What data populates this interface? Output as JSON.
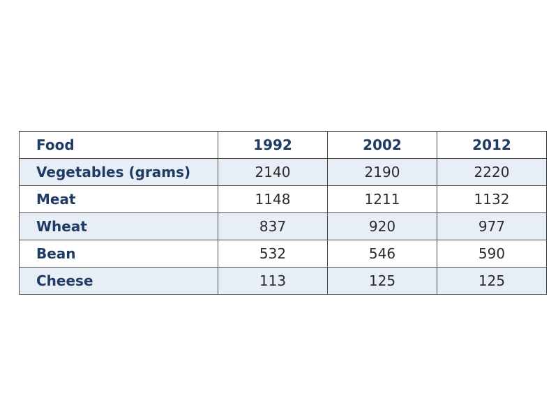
{
  "chart_data": {
    "type": "table",
    "columns": [
      "Food",
      "1992",
      "2002",
      "2012"
    ],
    "rows": [
      {
        "label": "Vegetables (grams)",
        "values": [
          "2140",
          "2190",
          "2220"
        ]
      },
      {
        "label": "Meat",
        "values": [
          "1148",
          "1211",
          "1132"
        ]
      },
      {
        "label": "Wheat",
        "values": [
          "837",
          "920",
          "977"
        ]
      },
      {
        "label": "Bean",
        "values": [
          "532",
          "546",
          "590"
        ]
      },
      {
        "label": "Cheese",
        "values": [
          "113",
          "125",
          "125"
        ]
      }
    ],
    "colors": {
      "header_text": "#1f3b63",
      "row_shade": "#e8eef6",
      "border": "#4a4a4a"
    }
  }
}
